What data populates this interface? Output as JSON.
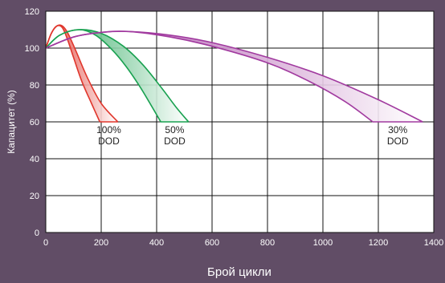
{
  "chart_data": {
    "type": "area",
    "title": "",
    "xlabel": "Брой цикли",
    "ylabel": "Капацитет (%)",
    "xlim": [
      0,
      1400
    ],
    "ylim": [
      0,
      120
    ],
    "xticks": [
      0,
      200,
      400,
      600,
      800,
      1000,
      1200,
      1400
    ],
    "yticks": [
      0,
      20,
      40,
      60,
      80,
      100,
      120
    ],
    "grid": true,
    "series": [
      {
        "name": "100% DOD",
        "label_lines": [
          "100%",
          "DOD"
        ],
        "color": "#e0362c",
        "fill_start": "#e0362c",
        "fill_end": "#ffffff",
        "upper": [
          [
            0,
            100
          ],
          [
            20,
            108
          ],
          [
            40,
            112
          ],
          [
            60,
            112
          ],
          [
            80,
            108
          ],
          [
            110,
            98
          ],
          [
            150,
            84
          ],
          [
            200,
            70
          ],
          [
            260,
            60
          ]
        ],
        "lower": [
          [
            0,
            100
          ],
          [
            20,
            108
          ],
          [
            40,
            112
          ],
          [
            60,
            111
          ],
          [
            80,
            104
          ],
          [
            100,
            95
          ],
          [
            130,
            82
          ],
          [
            165,
            70
          ],
          [
            195,
            60
          ]
        ]
      },
      {
        "name": "50% DOD",
        "label_lines": [
          "50%",
          "DOD"
        ],
        "color": "#19a150",
        "fill_start": "#19a150",
        "fill_end": "#ffffff",
        "upper": [
          [
            0,
            100
          ],
          [
            50,
            107
          ],
          [
            120,
            110
          ],
          [
            200,
            108
          ],
          [
            280,
            101
          ],
          [
            350,
            91
          ],
          [
            420,
            78
          ],
          [
            470,
            68
          ],
          [
            515,
            60
          ]
        ],
        "lower": [
          [
            0,
            100
          ],
          [
            50,
            107
          ],
          [
            120,
            110
          ],
          [
            180,
            107
          ],
          [
            240,
            99
          ],
          [
            290,
            90
          ],
          [
            340,
            79
          ],
          [
            380,
            69
          ],
          [
            415,
            60
          ]
        ]
      },
      {
        "name": "30% DOD",
        "label_lines": [
          "30%",
          "DOD"
        ],
        "color": "#a13a9f",
        "fill_start": "#a13a9f",
        "fill_end": "#ffffff",
        "upper": [
          [
            0,
            100
          ],
          [
            100,
            106
          ],
          [
            200,
            108.5
          ],
          [
            300,
            109
          ],
          [
            450,
            107
          ],
          [
            600,
            103
          ],
          [
            800,
            95
          ],
          [
            1000,
            85
          ],
          [
            1200,
            72
          ],
          [
            1360,
            60
          ]
        ],
        "lower": [
          [
            0,
            100
          ],
          [
            100,
            106
          ],
          [
            200,
            108.5
          ],
          [
            300,
            109
          ],
          [
            450,
            106
          ],
          [
            600,
            101
          ],
          [
            800,
            92
          ],
          [
            950,
            82
          ],
          [
            1080,
            71
          ],
          [
            1180,
            60
          ]
        ]
      }
    ]
  }
}
